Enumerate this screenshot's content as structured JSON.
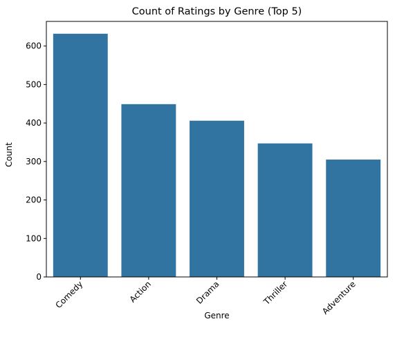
{
  "chart_data": {
    "type": "bar",
    "title": "Count of Ratings by Genre (Top 5)",
    "xlabel": "Genre",
    "ylabel": "Count",
    "categories": [
      "Comedy",
      "Action",
      "Drama",
      "Thriller",
      "Adventure"
    ],
    "values": [
      632,
      449,
      406,
      347,
      305
    ],
    "ylim": [
      0,
      664
    ],
    "yticks": [
      0,
      100,
      200,
      300,
      400,
      500,
      600
    ],
    "x_tick_rotation_deg": 45,
    "grid": false,
    "legend": "none",
    "bar_color": "#3274a1"
  }
}
